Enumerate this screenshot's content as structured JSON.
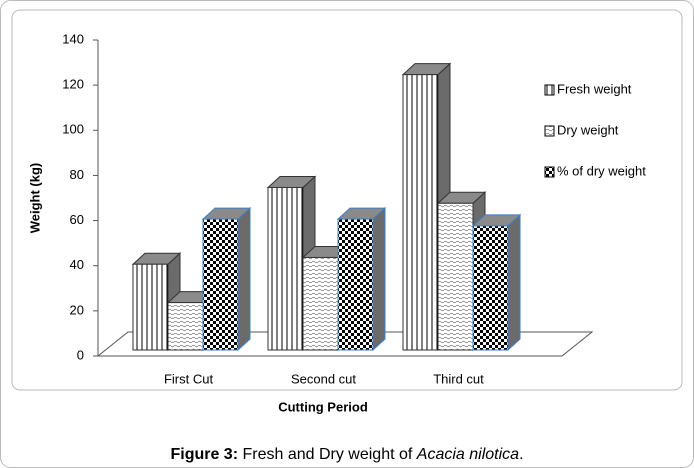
{
  "chart_data": {
    "type": "bar3d",
    "y_label": "Weight (kg)",
    "x_label": "Cutting Period",
    "categories": [
      "First Cut",
      "Second cut",
      "Third cut"
    ],
    "series": [
      {
        "name": "Fresh weight",
        "pattern": "stripes",
        "values": [
          38,
          72,
          122
        ]
      },
      {
        "name": "Dry weight",
        "pattern": "dots",
        "values": [
          21,
          41,
          65
        ]
      },
      {
        "name": "% of dry weight",
        "pattern": "checks",
        "values": [
          58,
          58,
          55
        ]
      }
    ],
    "ylim": [
      0,
      140
    ],
    "yticks": [
      0,
      20,
      40,
      60,
      80,
      100,
      120,
      140
    ],
    "legend": "right",
    "caption_parts": [
      "Figure 3:",
      " Fresh and Dry weight of ",
      "Acacia nilotica",
      "."
    ]
  }
}
